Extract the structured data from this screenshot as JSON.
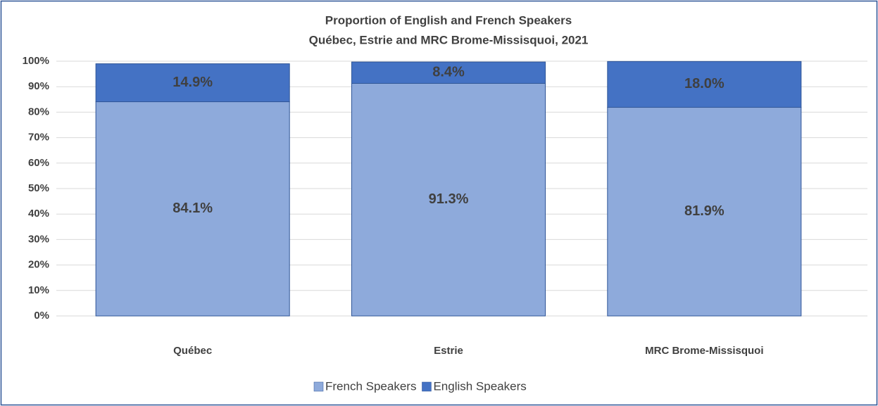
{
  "chart_data": {
    "type": "stacked_bar",
    "title": "Proportion of English and French Speakers",
    "subtitle": "Québec, Estrie and MRC Brome-Missisquoi,  2021",
    "categories": [
      "Québec",
      "Estrie",
      "MRC Brome-Missisquoi"
    ],
    "series": [
      {
        "name": "French Speakers",
        "color": "#8eaadb",
        "values": [
          84.1,
          91.3,
          81.9
        ],
        "value_labels": [
          "84.1%",
          "91.3%",
          "81.9%"
        ]
      },
      {
        "name": "English Speakers",
        "color": "#4472c4",
        "values": [
          14.9,
          8.4,
          18.0
        ],
        "value_labels": [
          "14.9%",
          "8.4%",
          "18.0%"
        ]
      }
    ],
    "ylim": [
      0,
      100
    ],
    "yticks": [
      {
        "value": 0,
        "label": "0%"
      },
      {
        "value": 10,
        "label": "10%"
      },
      {
        "value": 20,
        "label": "20%"
      },
      {
        "value": 30,
        "label": "30%"
      },
      {
        "value": 40,
        "label": "40%"
      },
      {
        "value": 50,
        "label": "50%"
      },
      {
        "value": 60,
        "label": "60%"
      },
      {
        "value": 70,
        "label": "70%"
      },
      {
        "value": 80,
        "label": "80%"
      },
      {
        "value": 90,
        "label": "90%"
      },
      {
        "value": 100,
        "label": "100%"
      }
    ],
    "grid": true,
    "legend": "bottom"
  }
}
